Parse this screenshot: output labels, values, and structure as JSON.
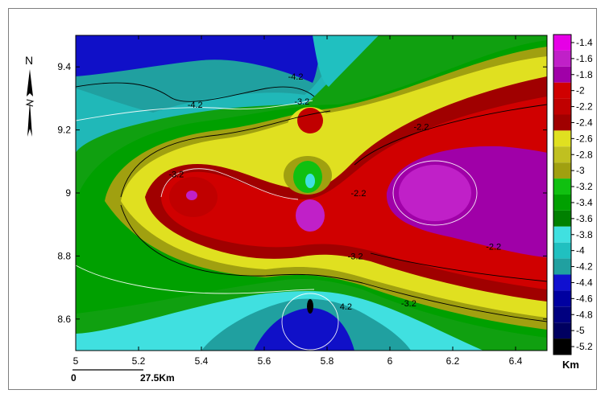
{
  "chart_data": {
    "type": "heatmap",
    "title": "",
    "xlabel": "",
    "ylabel": "",
    "xlim": [
      5,
      6.5
    ],
    "ylim": [
      8.5,
      9.5
    ],
    "x_ticks": [
      "5",
      "5.2",
      "5.4",
      "5.6",
      "5.8",
      "6",
      "6.2",
      "6.4"
    ],
    "y_ticks": [
      "8.6",
      "8.8",
      "9",
      "9.2",
      "9.4"
    ],
    "colorbar": {
      "unit": "Km",
      "levels": [
        "-1.4",
        "-1.6",
        "-1.8",
        "-2",
        "-2.2",
        "-2.4",
        "-2.6",
        "-2.8",
        "-3",
        "-3.2",
        "-3.4",
        "-3.6",
        "-3.8",
        "-4",
        "-4.2",
        "-4.4",
        "-4.6",
        "-4.8",
        "-5",
        "-5.2"
      ],
      "colors": [
        "#e600e6",
        "#c020c8",
        "#a000a8",
        "#d00000",
        "#c00000",
        "#a00000",
        "#e0e020",
        "#c0c020",
        "#a0a010",
        "#10c010",
        "#00a000",
        "#008000",
        "#40e0e0",
        "#20c0c0",
        "#20a0a0",
        "#1010d0",
        "#0000a0",
        "#000080",
        "#000060",
        "#000000"
      ]
    },
    "contour_labels": [
      {
        "x": 5.38,
        "y": 9.27,
        "text": "-4.2"
      },
      {
        "x": 5.7,
        "y": 9.36,
        "text": "-4.2"
      },
      {
        "x": 5.72,
        "y": 9.28,
        "text": "-3.2"
      },
      {
        "x": 5.32,
        "y": 9.05,
        "text": "-3.2"
      },
      {
        "x": 6.1,
        "y": 9.2,
        "text": "-2.2"
      },
      {
        "x": 5.9,
        "y": 8.99,
        "text": "-2.2"
      },
      {
        "x": 5.89,
        "y": 8.79,
        "text": "-3.2"
      },
      {
        "x": 6.33,
        "y": 8.82,
        "text": "-2.2"
      },
      {
        "x": 6.06,
        "y": 8.64,
        "text": "-3.2"
      },
      {
        "x": 5.86,
        "y": 8.63,
        "text": "4.2"
      }
    ],
    "north_label": "N",
    "scale_bar": {
      "start": "0",
      "end": "27.5Km"
    }
  }
}
